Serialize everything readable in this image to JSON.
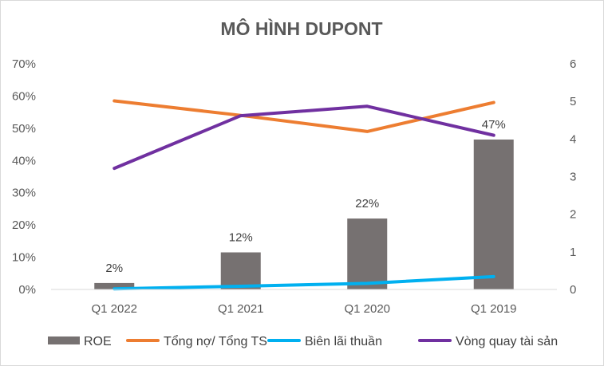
{
  "chart_data": {
    "type": "bar",
    "title": "MÔ HÌNH DUPONT",
    "categories": [
      "Q1 2022",
      "Q1 2021",
      "Q1 2020",
      "Q1 2019"
    ],
    "y_left": {
      "ticks": [
        "0%",
        "10%",
        "20%",
        "30%",
        "40%",
        "50%",
        "60%",
        "70%"
      ],
      "min": 0,
      "max": 0.7
    },
    "y_right": {
      "ticks": [
        "0",
        "1",
        "2",
        "3",
        "4",
        "5",
        "6"
      ],
      "min": 0,
      "max": 6
    },
    "grid": false,
    "legend_position": "bottom",
    "series": [
      {
        "name": "ROE",
        "kind": "bar",
        "axis": "left",
        "color": "#767171",
        "values": [
          0.02,
          0.115,
          0.22,
          0.465
        ],
        "labels": [
          "2%",
          "12%",
          "22%",
          "47%"
        ]
      },
      {
        "name": "Tổng nợ/ Tổng TS",
        "kind": "line",
        "axis": "left",
        "color": "#ED7D31",
        "values": [
          0.585,
          0.54,
          0.49,
          0.58
        ]
      },
      {
        "name": "Biên lãi thuần",
        "kind": "line",
        "axis": "left",
        "color": "#00B0F0",
        "values": [
          0.002,
          0.01,
          0.019,
          0.04
        ]
      },
      {
        "name": "Vòng quay tài sản",
        "kind": "line",
        "axis": "right",
        "color": "#7030A0",
        "values": [
          3.22,
          4.62,
          4.87,
          4.1
        ]
      }
    ]
  }
}
